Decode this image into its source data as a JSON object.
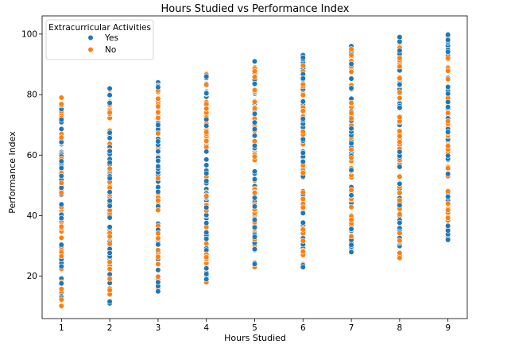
{
  "chart_data": {
    "type": "scatter",
    "title": "Hours Studied vs Performance Index",
    "xlabel": "Hours Studied",
    "ylabel": "Performance Index",
    "xlim": [
      0.6,
      9.4
    ],
    "ylim": [
      6,
      106
    ],
    "xticks": [
      1,
      2,
      3,
      4,
      5,
      6,
      7,
      8,
      9
    ],
    "yticks": [
      20,
      40,
      60,
      80,
      100
    ],
    "grid": false,
    "legend": {
      "title": "Extracurricular Activities",
      "placement": "top-left",
      "entries": [
        {
          "label": "Yes",
          "color": "#1f77b4"
        },
        {
          "label": "No",
          "color": "#ff7f0e"
        }
      ]
    },
    "series": [
      {
        "name": "Yes",
        "color": "#1f77b4",
        "points": [
          {
            "x": 1,
            "y_min": 12,
            "y_max": 77
          },
          {
            "x": 2,
            "y_min": 11,
            "y_max": 82
          },
          {
            "x": 3,
            "y_min": 15,
            "y_max": 84
          },
          {
            "x": 4,
            "y_min": 19,
            "y_max": 86
          },
          {
            "x": 5,
            "y_min": 24,
            "y_max": 91
          },
          {
            "x": 6,
            "y_min": 23,
            "y_max": 93
          },
          {
            "x": 7,
            "y_min": 28,
            "y_max": 96
          },
          {
            "x": 8,
            "y_min": 30,
            "y_max": 99
          },
          {
            "x": 9,
            "y_min": 32,
            "y_max": 100
          }
        ]
      },
      {
        "name": "No",
        "color": "#ff7f0e",
        "points": [
          {
            "x": 1,
            "y_min": 10,
            "y_max": 79
          },
          {
            "x": 2,
            "y_min": 14,
            "y_max": 80
          },
          {
            "x": 3,
            "y_min": 16,
            "y_max": 83
          },
          {
            "x": 4,
            "y_min": 18,
            "y_max": 87
          },
          {
            "x": 5,
            "y_min": 23,
            "y_max": 89
          },
          {
            "x": 6,
            "y_min": 24,
            "y_max": 92
          },
          {
            "x": 7,
            "y_min": 30,
            "y_max": 95
          },
          {
            "x": 8,
            "y_min": 26,
            "y_max": 97
          },
          {
            "x": 9,
            "y_min": 34,
            "y_max": 99
          }
        ]
      }
    ]
  }
}
